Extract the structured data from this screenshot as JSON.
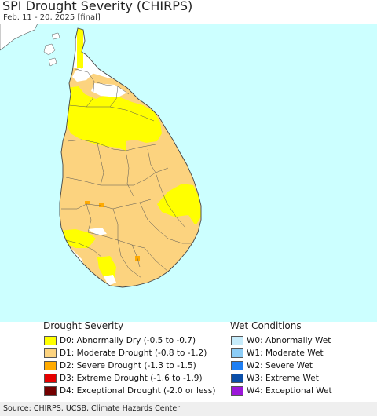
{
  "title": "SPI Drought Severity (CHIRPS)",
  "subtitle": "Feb. 11 - 20, 2025 [final]",
  "colors": {
    "ocean": "#ccffff",
    "land_normal": "#ffffff",
    "boundary": "#555555",
    "D0": "#ffff00",
    "D1": "#fcd37f",
    "D2": "#ffaa00",
    "D3": "#e60000",
    "D4": "#730000",
    "W0": "#c6ecfb",
    "W1": "#8ccdf7",
    "W2": "#1f7ff3",
    "W3": "#0b4fa8",
    "W4": "#9c17d9"
  },
  "legend": {
    "drought": {
      "heading": "Drought Severity",
      "items": [
        {
          "code": "D0",
          "label": "D0: Abnormally Dry (-0.5 to -0.7)",
          "color": "#ffff00"
        },
        {
          "code": "D1",
          "label": "D1: Moderate Drought (-0.8 to -1.2)",
          "color": "#fcd37f"
        },
        {
          "code": "D2",
          "label": "D2: Severe Drought (-1.3 to -1.5)",
          "color": "#ffaa00"
        },
        {
          "code": "D3",
          "label": "D3: Extreme Drought (-1.6 to -1.9)",
          "color": "#e60000"
        },
        {
          "code": "D4",
          "label": "D4: Exceptional Drought (-2.0 or less)",
          "color": "#730000"
        }
      ]
    },
    "wet": {
      "heading": "Wet Conditions",
      "items": [
        {
          "code": "W0",
          "label": "W0: Abnormally Wet",
          "color": "#c6ecfb"
        },
        {
          "code": "W1",
          "label": "W1: Moderate Wet",
          "color": "#8ccdf7"
        },
        {
          "code": "W2",
          "label": "W2: Severe Wet",
          "color": "#1f7ff3"
        },
        {
          "code": "W3",
          "label": "W3: Extreme Wet",
          "color": "#0b4fa8"
        },
        {
          "code": "W4",
          "label": "W4: Exceptional Wet",
          "color": "#9c17d9"
        }
      ]
    }
  },
  "source": "Source: CHIRPS, UCSB, Climate Hazards Center"
}
